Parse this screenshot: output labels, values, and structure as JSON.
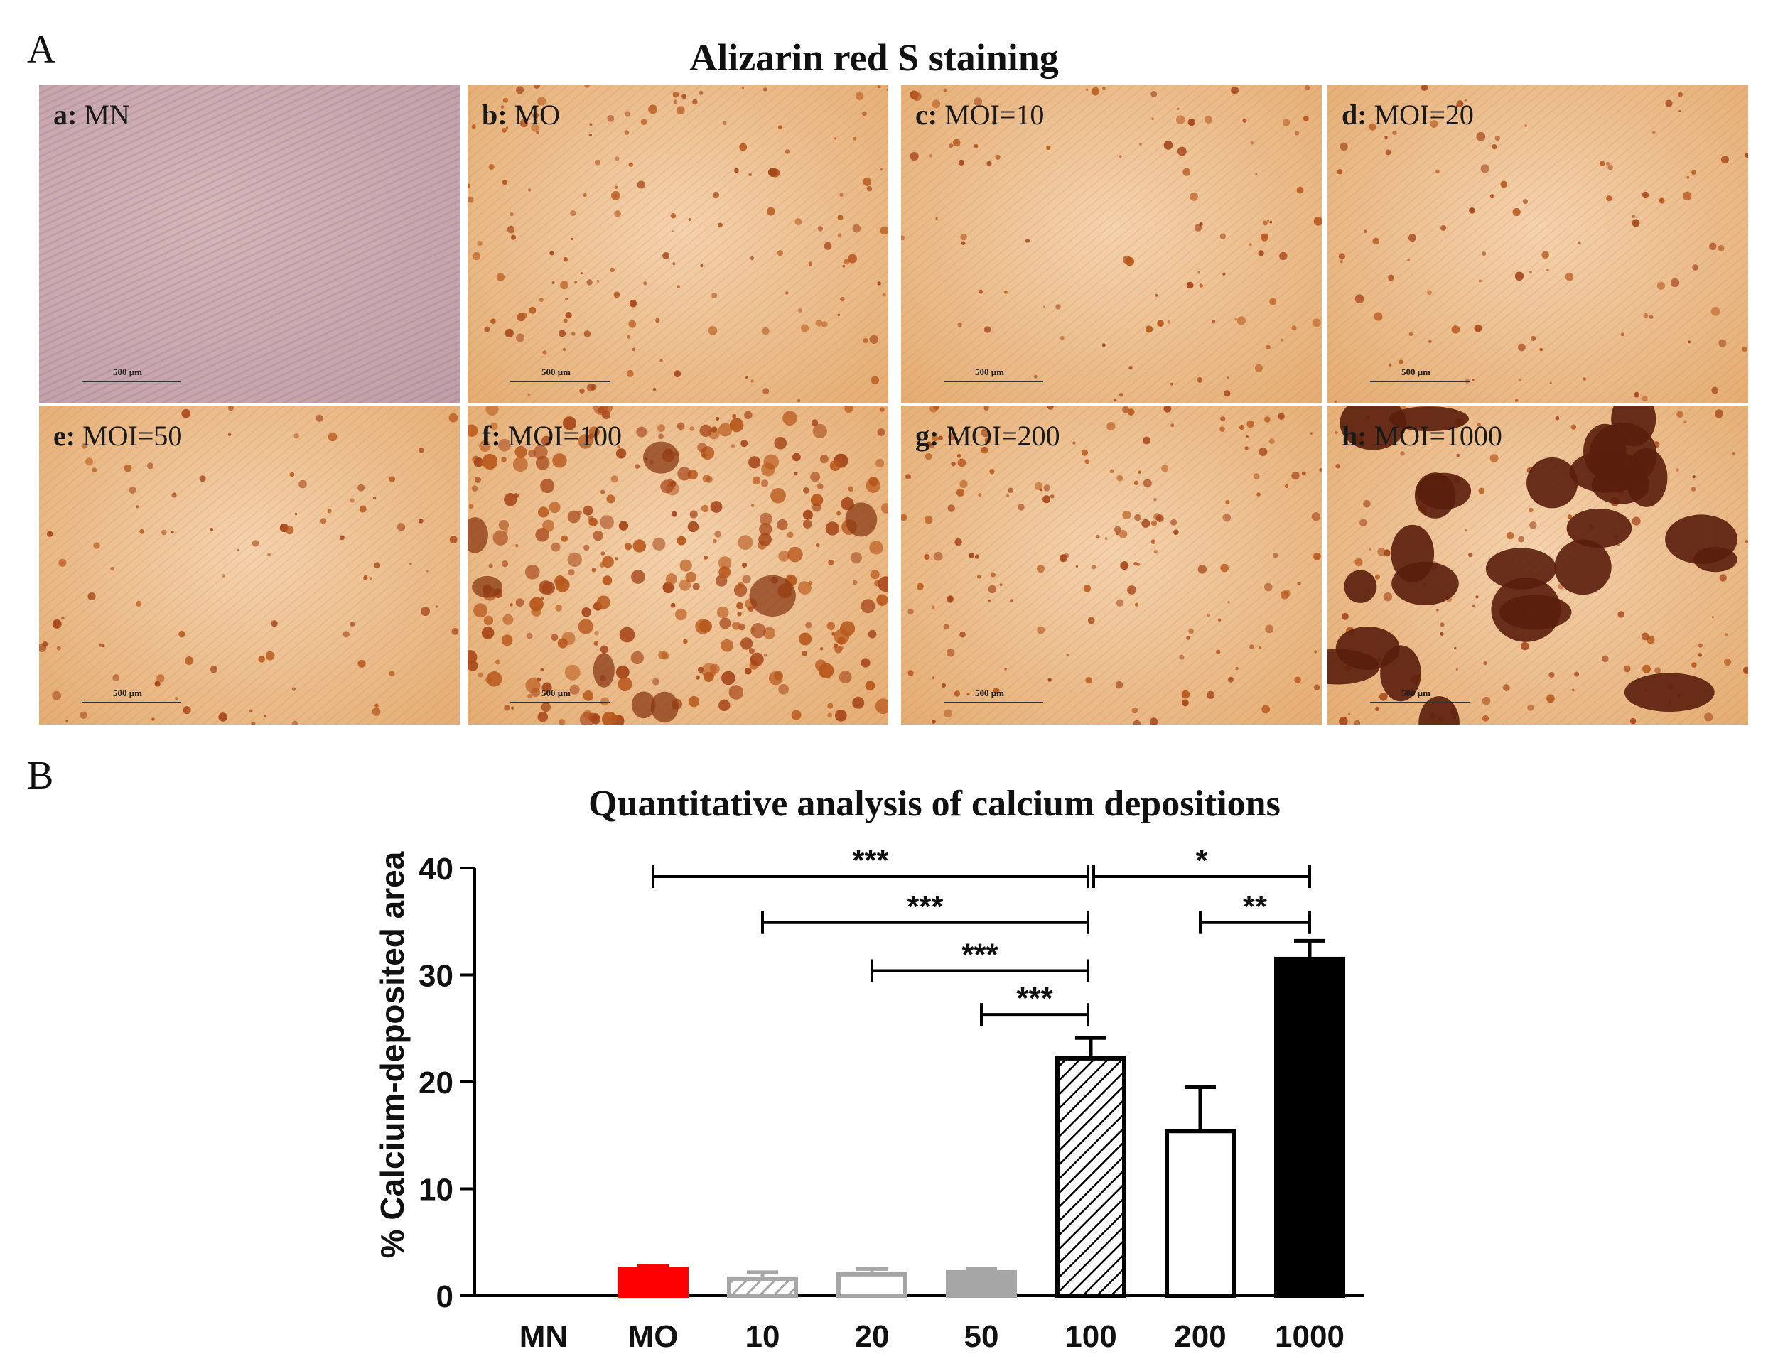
{
  "panel_a": {
    "letter": "A",
    "title": "Alizarin red S staining",
    "scale_label": "500 μm",
    "images": [
      {
        "prefix": "a:",
        "label": "MN",
        "tone": "purple",
        "deposit": "none"
      },
      {
        "prefix": "b:",
        "label": "MO",
        "tone": "orange",
        "deposit": "many-small"
      },
      {
        "prefix": "c:",
        "label": "MOI=10",
        "tone": "orange",
        "deposit": "sparse"
      },
      {
        "prefix": "d:",
        "label": "MOI=20",
        "tone": "orange",
        "deposit": "sparse"
      },
      {
        "prefix": "e:",
        "label": "MOI=50",
        "tone": "orange",
        "deposit": "sparse"
      },
      {
        "prefix": "f:",
        "label": "MOI=100",
        "tone": "orange",
        "deposit": "dense"
      },
      {
        "prefix": "g:",
        "label": "MOI=200",
        "tone": "orange",
        "deposit": "moderate"
      },
      {
        "prefix": "h:",
        "label": "MOI=1000",
        "tone": "orange",
        "deposit": "large-clusters"
      }
    ]
  },
  "panel_b": {
    "letter": "B"
  },
  "chart_data": {
    "type": "bar",
    "title": "Quantitative analysis of calcium depositions",
    "xlabel": "",
    "ylabel": "% Calcium-deposited  area",
    "ylim": [
      0,
      40
    ],
    "yticks": [
      0,
      10,
      20,
      30,
      40
    ],
    "categories": [
      "MN",
      "MO",
      "10",
      "20",
      "50",
      "100",
      "200",
      "1000"
    ],
    "values": [
      0,
      2.5,
      1.6,
      2.0,
      2.2,
      22.2,
      15.4,
      31.5
    ],
    "errors": [
      0,
      0.3,
      0.6,
      0.5,
      0.3,
      1.9,
      4.1,
      1.7
    ],
    "bar_styles": [
      {
        "fill": "#ffffff",
        "stroke": "#000000",
        "hatch": false
      },
      {
        "fill": "#ff0000",
        "stroke": "#ff0000",
        "hatch": false
      },
      {
        "fill": "#ffffff",
        "stroke": "#a6a6a6",
        "hatch": true
      },
      {
        "fill": "#ffffff",
        "stroke": "#a6a6a6",
        "hatch": false
      },
      {
        "fill": "#a6a6a6",
        "stroke": "#a6a6a6",
        "hatch": false
      },
      {
        "fill": "#ffffff",
        "stroke": "#000000",
        "hatch": true
      },
      {
        "fill": "#ffffff",
        "stroke": "#000000",
        "hatch": false
      },
      {
        "fill": "#000000",
        "stroke": "#000000",
        "hatch": false
      }
    ],
    "significance": [
      {
        "from": "MO",
        "to": "100",
        "y": 39.2,
        "label": "***"
      },
      {
        "from": "10",
        "to": "100",
        "y": 34.9,
        "label": "***"
      },
      {
        "from": "20",
        "to": "100",
        "y": 30.4,
        "label": "***"
      },
      {
        "from": "50",
        "to": "100",
        "y": 26.3,
        "label": "***"
      },
      {
        "from": "100",
        "to": "1000",
        "y": 39.2,
        "label": "*"
      },
      {
        "from": "200",
        "to": "1000",
        "y": 34.9,
        "label": "**"
      }
    ]
  }
}
